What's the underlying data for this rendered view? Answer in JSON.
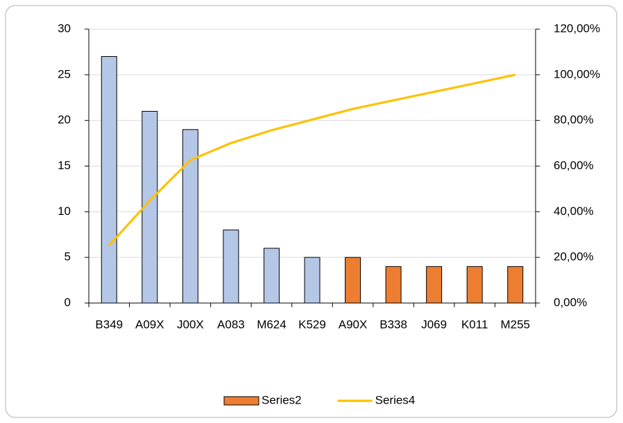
{
  "chart_data": {
    "type": "pareto",
    "categories": [
      "B349",
      "A09X",
      "J00X",
      "A083",
      "M624",
      "K529",
      "A90X",
      "B338",
      "J069",
      "K011",
      "M255"
    ],
    "series": [
      {
        "type": "bar",
        "color": "#b4c7e7",
        "values": [
          27,
          21,
          19,
          8,
          6,
          5,
          null,
          null,
          null,
          null,
          null
        ]
      },
      {
        "type": "bar",
        "name": "Series2",
        "color": "#ed7d31",
        "values": [
          null,
          null,
          null,
          null,
          null,
          null,
          5,
          4,
          4,
          4,
          4
        ]
      },
      {
        "type": "line",
        "name": "Series4",
        "color": "#ffc000",
        "axis": "y2",
        "values": [
          25.23,
          44.86,
          62.62,
          70.09,
          75.7,
          80.37,
          85.05,
          88.79,
          92.52,
          96.26,
          100
        ]
      }
    ],
    "ylim": [
      0,
      30
    ],
    "yticks": [
      0,
      5,
      10,
      15,
      20,
      25,
      30
    ],
    "y2lim": [
      0,
      120
    ],
    "y2ticks": [
      {
        "value": 0,
        "label": "0,00%"
      },
      {
        "value": 20,
        "label": "20,00%"
      },
      {
        "value": 40,
        "label": "40,00%"
      },
      {
        "value": 60,
        "label": "60,00%"
      },
      {
        "value": 80,
        "label": "80,00%"
      },
      {
        "value": 100,
        "label": "100,00%"
      },
      {
        "value": 120,
        "label": "120,00%"
      }
    ],
    "grid": true,
    "legend": "bottom"
  }
}
